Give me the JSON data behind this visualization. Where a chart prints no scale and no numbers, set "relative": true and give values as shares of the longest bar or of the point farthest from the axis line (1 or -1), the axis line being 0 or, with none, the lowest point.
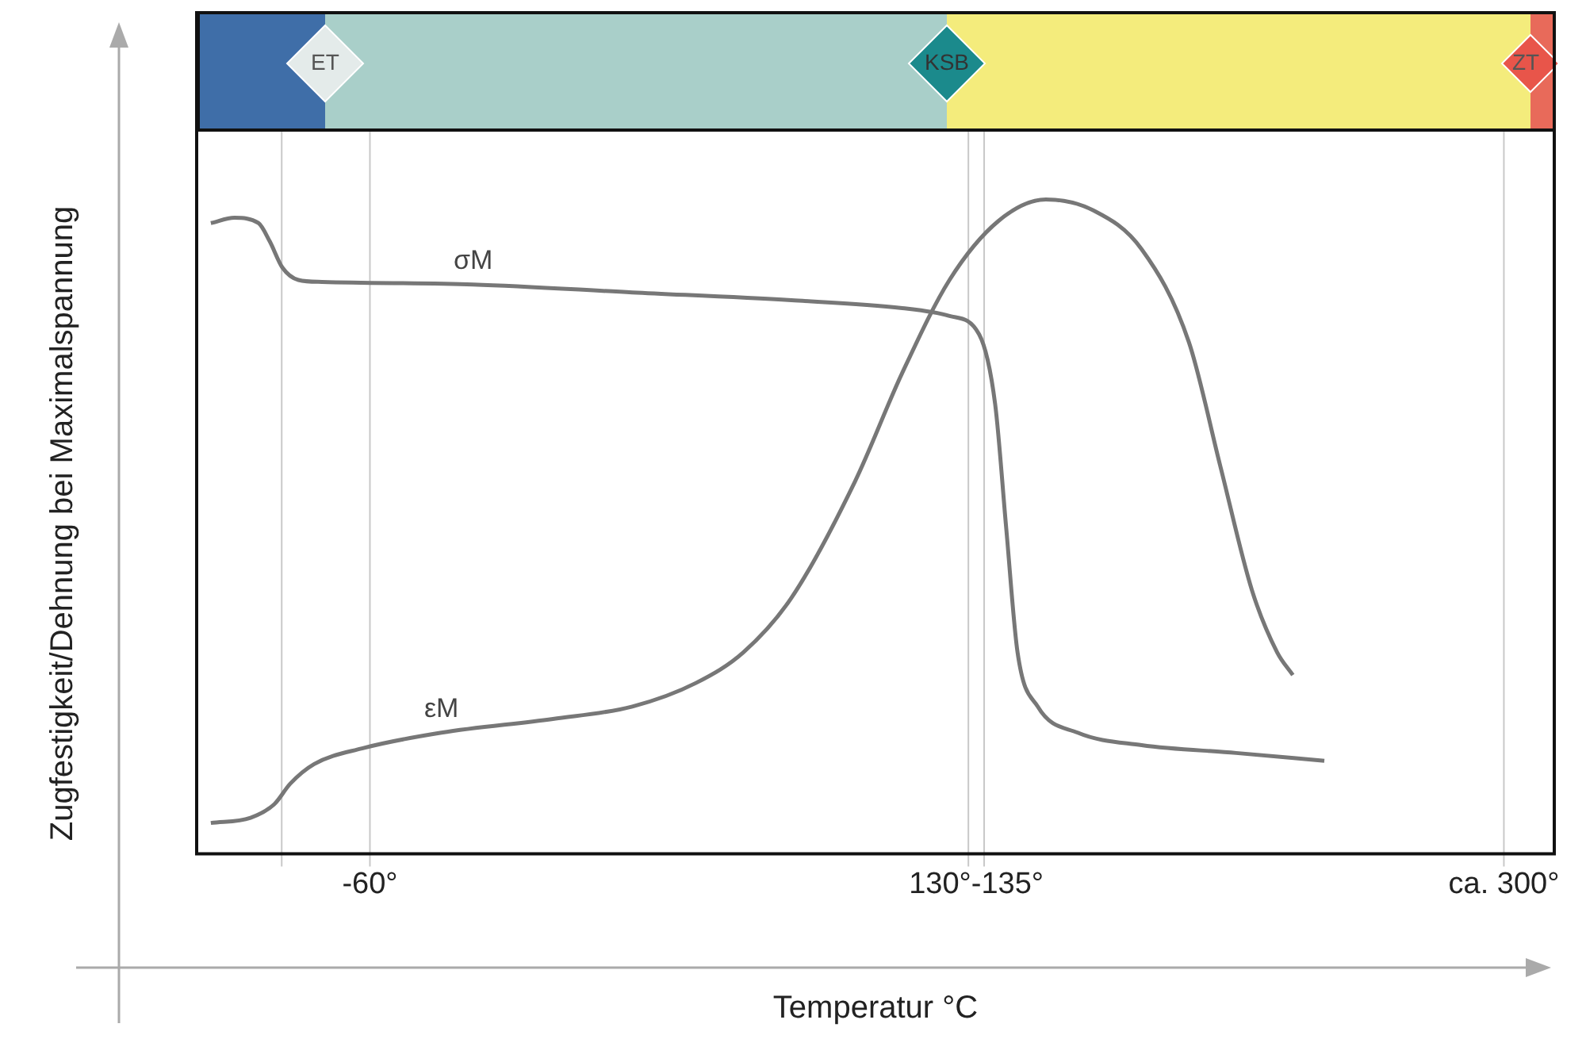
{
  "chart_data": {
    "type": "line",
    "relative": true,
    "xlabel": "Temperatur °C",
    "ylabel": "Zugfestigkeit/Dehnung bei Maximalspannung",
    "xlim": [
      -115,
      316
    ],
    "xticks": [
      {
        "value": -60,
        "label": "-60°"
      },
      {
        "value": 132.5,
        "label": "130°-135°"
      },
      {
        "value": 300,
        "label": "ca. 300°"
      }
    ],
    "tick_labels": "x",
    "grid": false,
    "legend": false,
    "marker": "none",
    "line_style": "solid",
    "series": [
      {
        "name": "σM",
        "color": "#777777",
        "x": [
          -110.5,
          -103,
          -95.4,
          -91.8,
          -87.8,
          -82.7,
          -75.2,
          -27.2,
          23.3,
          73.8,
          109,
          124,
          133.4,
          138.5,
          142,
          145.6,
          152,
          164.7,
          185,
          215,
          243
        ],
        "values": [
          0.964,
          0.972,
          0.964,
          0.936,
          0.896,
          0.877,
          0.874,
          0.87,
          0.858,
          0.846,
          0.834,
          0.822,
          0.794,
          0.687,
          0.498,
          0.308,
          0.225,
          0.185,
          0.166,
          0.154,
          0.142
        ]
      },
      {
        "name": "εM",
        "color": "#777777",
        "x": [
          -110.5,
          -97.9,
          -90.3,
          -85.3,
          -77.7,
          -62.5,
          -37.3,
          -1.9,
          23.3,
          43.5,
          58.6,
          73.8,
          94,
          109,
          124,
          139.5,
          154.6,
          169.8,
          185,
          200,
          210,
          220,
          228,
          233
        ],
        "values": [
          0.047,
          0.055,
          0.076,
          0.107,
          0.137,
          0.161,
          0.185,
          0.206,
          0.225,
          0.261,
          0.308,
          0.391,
          0.569,
          0.735,
          0.877,
          0.967,
          1,
          0.983,
          0.924,
          0.782,
          0.592,
          0.403,
          0.308,
          0.273
        ]
      }
    ],
    "ref_lines": [
      {
        "axis": "x",
        "value": -88,
        "color": "#c8c8c8"
      },
      {
        "axis": "x",
        "value": -60,
        "color": "#c8c8c8"
      },
      {
        "axis": "x",
        "value": 130,
        "color": "#c8c8c8"
      },
      {
        "axis": "x",
        "value": 135,
        "color": "#c8c8c8"
      },
      {
        "axis": "x",
        "value": 300,
        "color": "#c8c8c8"
      }
    ],
    "annotations": [
      "ET",
      "KSB",
      "ZT"
    ]
  }
}
